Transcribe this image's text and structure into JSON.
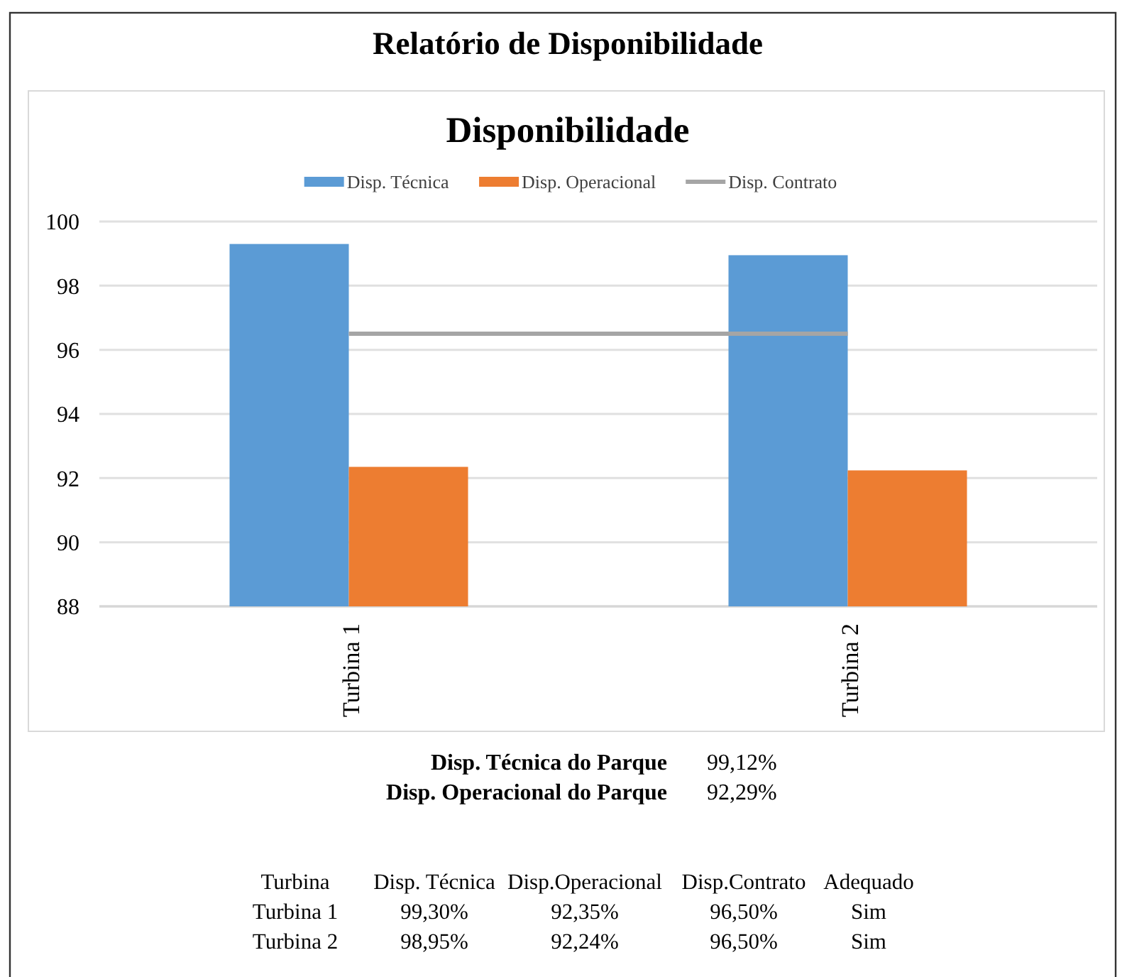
{
  "chart_data": {
    "type": "bar",
    "title": "Relatório de Disponibilidade",
    "subtitle": "Disponibilidade",
    "categories": [
      "Turbina 1",
      "Turbina 2"
    ],
    "series": [
      {
        "name": "Disp. Técnica",
        "color": "#5b9bd5",
        "values": [
          99.3,
          98.95
        ]
      },
      {
        "name": "Disp. Operacional",
        "color": "#ed7d31",
        "values": [
          92.35,
          92.24
        ]
      },
      {
        "name": "Disp. Contrato",
        "type": "line",
        "color": "#a5a5a5",
        "values": [
          96.5,
          96.5
        ]
      }
    ],
    "ylim": [
      88,
      100
    ],
    "yticks": [
      88,
      90,
      92,
      94,
      96,
      98,
      100
    ],
    "grid": "y",
    "legend": "top",
    "annotations": [
      "Disp. Técnica do Parque",
      "99,12%",
      "Disp. Operacional do Parque",
      "92,29%",
      "Turbina",
      "Disp. Técnica",
      "Disp.Operacional",
      "Disp.Contrato",
      "Adequado",
      "Turbina 1",
      "99,30%",
      "92,35%",
      "96,50%",
      "Sim",
      "Turbina 2",
      "98,95%",
      "92,24%",
      "96,50%",
      "Sim"
    ]
  }
}
